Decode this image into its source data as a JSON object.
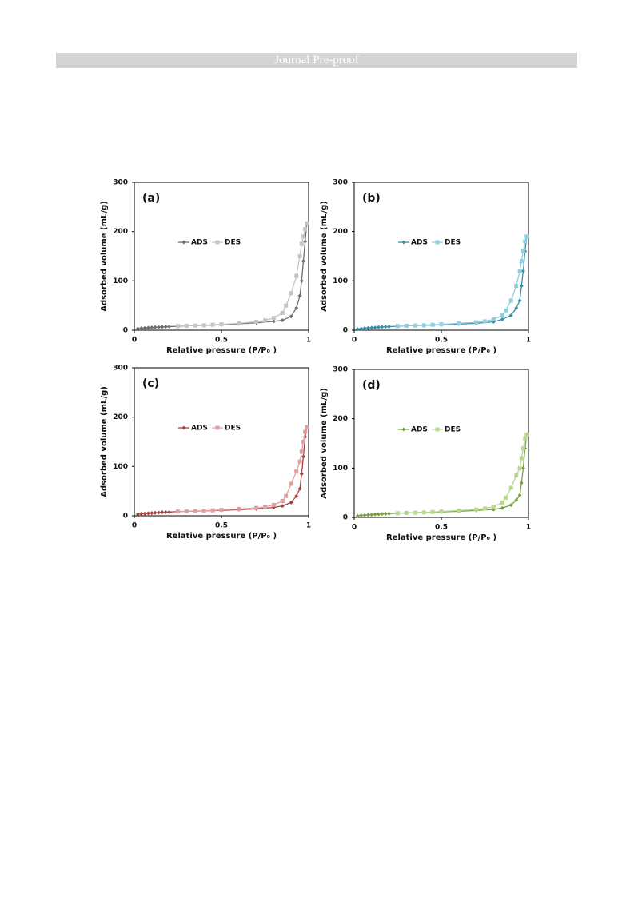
{
  "header": {
    "title": "Journal Pre-proof"
  },
  "chart_data": [
    {
      "type": "line",
      "label": "(a)",
      "xlabel": "Relative pressure (P/P₀ )",
      "ylabel": "Adsorbed volume (mL/g)",
      "xlim": [
        0,
        1
      ],
      "ylim": [
        0,
        300
      ],
      "xticks": [
        0,
        0.5,
        1
      ],
      "yticks": [
        0,
        100,
        200,
        300
      ],
      "series": [
        {
          "name": "ADS",
          "color": "#6e6e6e",
          "marker": "diamond",
          "x": [
            0.02,
            0.04,
            0.06,
            0.08,
            0.1,
            0.12,
            0.14,
            0.16,
            0.18,
            0.2,
            0.25,
            0.3,
            0.4,
            0.5,
            0.6,
            0.7,
            0.8,
            0.85,
            0.9,
            0.93,
            0.95,
            0.96,
            0.97,
            0.98,
            0.99
          ],
          "values": [
            3,
            4,
            4.5,
            5,
            5.5,
            6,
            6.3,
            6.6,
            7,
            7.3,
            8,
            9,
            10,
            11,
            13,
            15,
            18,
            20,
            28,
            45,
            70,
            100,
            140,
            180,
            217
          ]
        },
        {
          "name": "DES",
          "color": "#c4c4c4",
          "marker": "square",
          "x": [
            0.99,
            0.98,
            0.97,
            0.96,
            0.95,
            0.93,
            0.9,
            0.87,
            0.85,
            0.8,
            0.75,
            0.7,
            0.6,
            0.5,
            0.45,
            0.4,
            0.35,
            0.3,
            0.25
          ],
          "values": [
            217,
            205,
            190,
            175,
            150,
            110,
            75,
            50,
            35,
            25,
            20,
            17,
            14,
            12,
            11,
            10,
            9.5,
            9,
            8.5
          ]
        }
      ]
    },
    {
      "type": "line",
      "label": "(b)",
      "xlabel": "Relative pressure (P/P₀ )",
      "ylabel": "Adsorbed volume (mL/g)",
      "xlim": [
        0,
        1
      ],
      "ylim": [
        0,
        300
      ],
      "xticks": [
        0,
        0.5,
        1
      ],
      "yticks": [
        0,
        100,
        200,
        300
      ],
      "series": [
        {
          "name": "ADS",
          "color": "#3a8ea8",
          "marker": "diamond",
          "x": [
            0.02,
            0.04,
            0.06,
            0.08,
            0.1,
            0.12,
            0.14,
            0.16,
            0.18,
            0.2,
            0.25,
            0.3,
            0.4,
            0.5,
            0.6,
            0.7,
            0.8,
            0.85,
            0.9,
            0.93,
            0.95,
            0.96,
            0.97,
            0.98,
            0.99
          ],
          "values": [
            2,
            3,
            4,
            4.5,
            5,
            5.5,
            6,
            6.5,
            7,
            7.3,
            8,
            9,
            10,
            11,
            12.5,
            14,
            17,
            22,
            30,
            45,
            60,
            90,
            120,
            160,
            190
          ]
        },
        {
          "name": "DES",
          "color": "#8fcfe0",
          "marker": "square",
          "x": [
            0.99,
            0.98,
            0.97,
            0.96,
            0.95,
            0.93,
            0.9,
            0.87,
            0.85,
            0.8,
            0.75,
            0.7,
            0.6,
            0.5,
            0.45,
            0.4,
            0.35,
            0.3,
            0.25
          ],
          "values": [
            190,
            180,
            160,
            140,
            120,
            90,
            60,
            40,
            30,
            22,
            18,
            16,
            14,
            12,
            11,
            10,
            9.5,
            9,
            8.5
          ]
        }
      ]
    },
    {
      "type": "line",
      "label": "(c)",
      "xlabel": "Relative pressure (P/P₀ )",
      "ylabel": "Adsorbed volume (mL/g)",
      "xlim": [
        0,
        1
      ],
      "ylim": [
        0,
        300
      ],
      "xticks": [
        0,
        0.5,
        1
      ],
      "yticks": [
        0,
        100,
        200,
        300
      ],
      "series": [
        {
          "name": "ADS",
          "color": "#a84040",
          "marker": "diamond",
          "x": [
            0.02,
            0.04,
            0.06,
            0.08,
            0.1,
            0.12,
            0.14,
            0.16,
            0.18,
            0.2,
            0.25,
            0.3,
            0.4,
            0.5,
            0.6,
            0.7,
            0.8,
            0.85,
            0.9,
            0.93,
            0.95,
            0.96,
            0.97,
            0.98,
            0.99
          ],
          "values": [
            3,
            4,
            4.5,
            5,
            5.5,
            6,
            6.5,
            7,
            7.3,
            7.6,
            8.5,
            9,
            10,
            11,
            12.5,
            14,
            17,
            20,
            27,
            40,
            55,
            85,
            120,
            160,
            180
          ]
        },
        {
          "name": "DES",
          "color": "#e0a0a0",
          "marker": "square",
          "x": [
            0.99,
            0.98,
            0.97,
            0.96,
            0.95,
            0.93,
            0.9,
            0.87,
            0.85,
            0.8,
            0.75,
            0.7,
            0.6,
            0.5,
            0.45,
            0.4,
            0.35,
            0.3,
            0.25
          ],
          "values": [
            180,
            170,
            150,
            130,
            110,
            90,
            65,
            40,
            30,
            22,
            18,
            16,
            14,
            12,
            11,
            10,
            9.5,
            9,
            8.5
          ]
        }
      ]
    },
    {
      "type": "line",
      "label": "(d)",
      "xlabel": "Relative pressure (P/P₀ )",
      "ylabel": "Adsorbed volume (mL/g)",
      "xlim": [
        0,
        1
      ],
      "ylim": [
        0,
        300
      ],
      "xticks": [
        0,
        0.5,
        1
      ],
      "yticks": [
        0,
        100,
        200,
        300
      ],
      "series": [
        {
          "name": "ADS",
          "color": "#78a040",
          "marker": "diamond",
          "x": [
            0.02,
            0.04,
            0.06,
            0.08,
            0.1,
            0.12,
            0.14,
            0.16,
            0.18,
            0.2,
            0.25,
            0.3,
            0.4,
            0.5,
            0.6,
            0.7,
            0.8,
            0.85,
            0.9,
            0.93,
            0.95,
            0.96,
            0.97,
            0.98,
            0.99
          ],
          "values": [
            3,
            4,
            4.5,
            5,
            5.5,
            6,
            6.5,
            7,
            7.3,
            7.6,
            8.5,
            9,
            10,
            11,
            12.5,
            14,
            16,
            19,
            25,
            35,
            45,
            70,
            100,
            140,
            168
          ]
        },
        {
          "name": "DES",
          "color": "#b8d890",
          "marker": "square",
          "x": [
            0.99,
            0.98,
            0.97,
            0.96,
            0.95,
            0.93,
            0.9,
            0.87,
            0.85,
            0.8,
            0.75,
            0.7,
            0.6,
            0.5,
            0.45,
            0.4,
            0.35,
            0.3,
            0.25
          ],
          "values": [
            168,
            160,
            140,
            120,
            100,
            85,
            60,
            40,
            30,
            22,
            18,
            16,
            14,
            12,
            11,
            10,
            9.5,
            9,
            8.5
          ]
        }
      ]
    }
  ]
}
